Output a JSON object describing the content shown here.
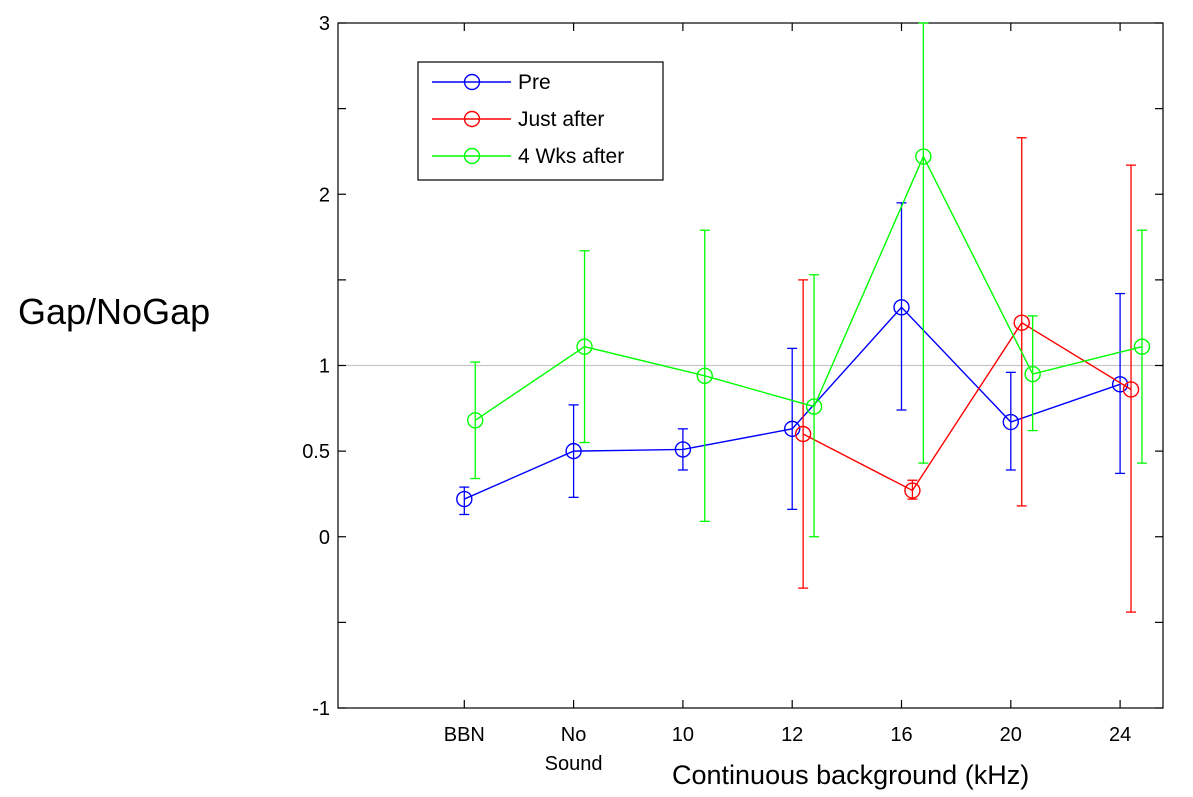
{
  "chart_data": {
    "type": "line",
    "xlabel": "Continuous background (kHz)",
    "ylabel": "Gap/NoGap",
    "categories": [
      [
        "BBN"
      ],
      [
        "No",
        "Sound"
      ],
      [
        "10"
      ],
      [
        "12"
      ],
      [
        "16"
      ],
      [
        "20"
      ],
      [
        "24"
      ]
    ],
    "yticks": [
      -1,
      "",
      0,
      0.5,
      1,
      "",
      2,
      "",
      3
    ],
    "ylim": [
      -1,
      3
    ],
    "xlim": [
      0,
      7
    ],
    "reference_line": 1,
    "legend_position": "top-left",
    "series": [
      {
        "name": "Pre",
        "color": "#0000ff",
        "x": [
          1,
          2,
          3,
          4,
          5,
          6,
          7
        ],
        "y": [
          0.22,
          0.5,
          0.51,
          0.63,
          1.34,
          0.67,
          0.89
        ],
        "err_low": [
          0.13,
          0.23,
          0.39,
          0.16,
          0.74,
          0.39,
          0.37
        ],
        "err_high": [
          0.29,
          0.77,
          0.63,
          1.1,
          1.95,
          0.96,
          1.42
        ]
      },
      {
        "name": "Just after",
        "color": "#ff0000",
        "x": [
          4.1,
          5.1,
          6.1,
          7.1
        ],
        "y": [
          0.6,
          0.27,
          1.25,
          0.86
        ],
        "err_low": [
          -0.3,
          0.22,
          0.18,
          -0.44
        ],
        "err_high": [
          1.5,
          0.33,
          2.33,
          2.17
        ]
      },
      {
        "name": "4 Wks after",
        "color": "#00ff00",
        "x": [
          1.1,
          2.1,
          3.2,
          4.2,
          5.2,
          6.2,
          7.2
        ],
        "y": [
          0.68,
          1.11,
          0.94,
          0.76,
          2.22,
          0.95,
          1.11
        ],
        "err_low": [
          0.34,
          0.55,
          0.09,
          0.0,
          0.43,
          0.62,
          0.43
        ],
        "err_high": [
          1.02,
          1.67,
          1.79,
          1.53,
          3.0,
          1.29,
          1.79
        ]
      }
    ]
  }
}
